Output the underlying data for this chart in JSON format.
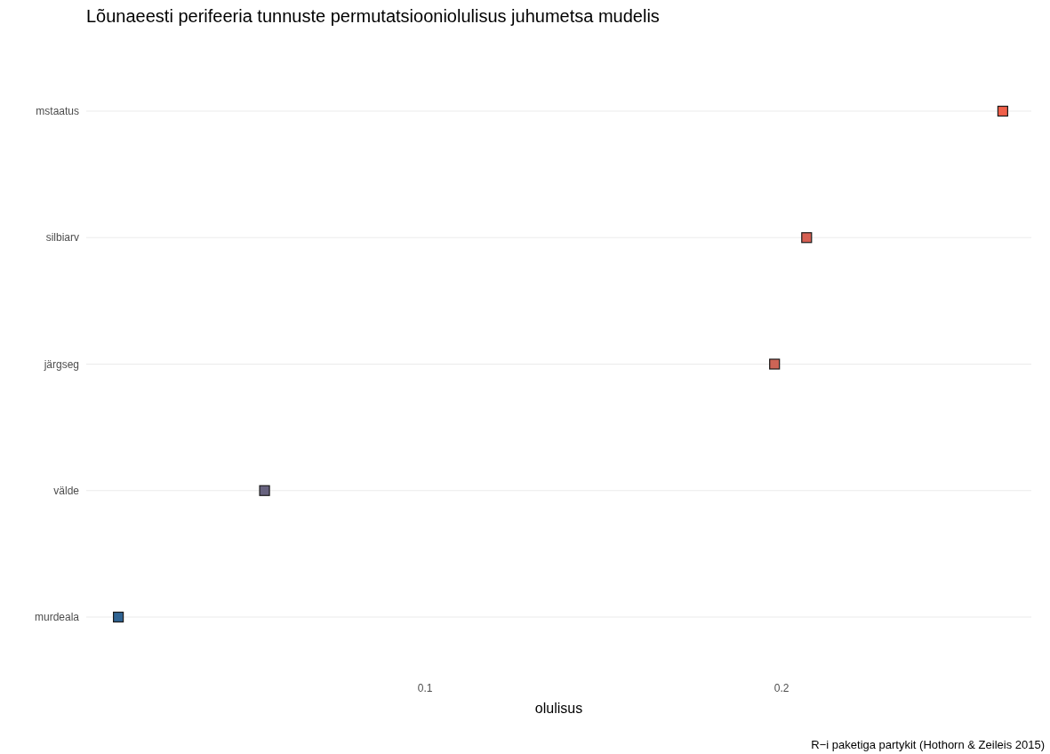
{
  "chart_data": {
    "type": "scatter",
    "title": "Lõunaeesti perifeeria tunnuste permutatsiooniolulisus juhumetsa mudelis",
    "xlabel": "olulisus",
    "annotations": [
      "R−i paketiga partykit (Hothorn & Zeileis 2015)"
    ],
    "categories": [
      "mstaatus",
      "silbiarv",
      "järgseg",
      "välde",
      "murdeala"
    ],
    "values": [
      0.262,
      0.207,
      0.198,
      0.055,
      0.014
    ],
    "colors": [
      "#f0604a",
      "#d65f52",
      "#cc6456",
      "#67627f",
      "#2f6392"
    ],
    "orientation": "horizontal",
    "xlim": [
      0.005,
      0.27
    ],
    "xticks": [
      0.1,
      0.2
    ],
    "grid": "y",
    "marker": "square"
  }
}
